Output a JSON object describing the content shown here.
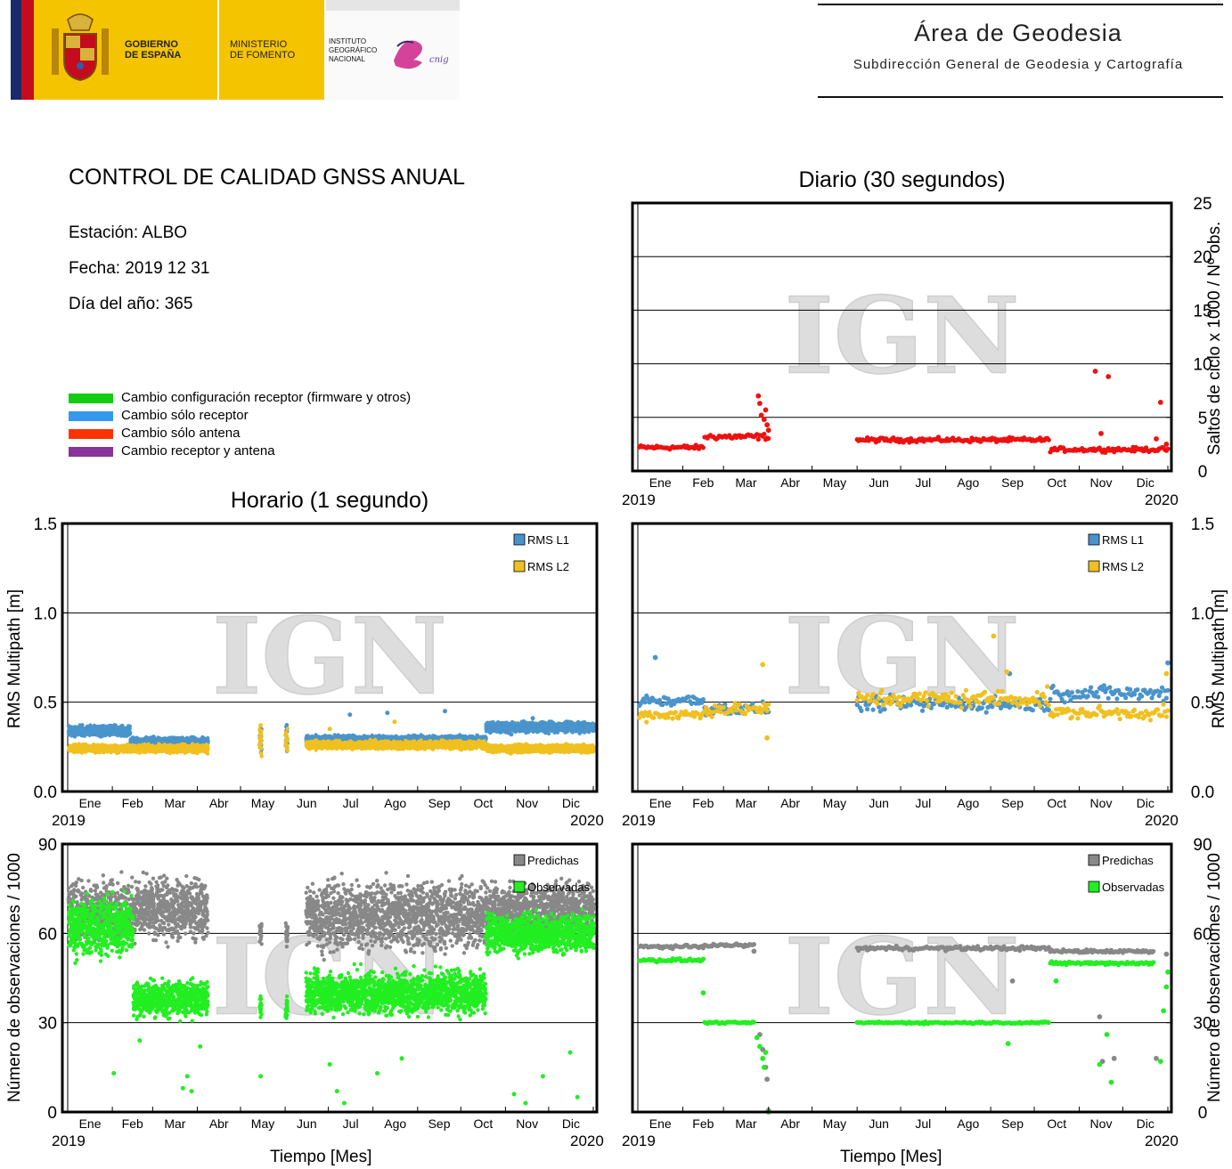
{
  "header": {
    "gobierno": "GOBIERNO\nDE ESPAÑA",
    "ministerio": "MINISTERIO\nDE FOMENTO",
    "instituto": "INSTITUTO\nGEOGRÁFICO\nNACIONAL",
    "cnig": "cnig",
    "area_title": "Área de Geodesia",
    "area_subtitle": "Subdirección General de Geodesia y Cartografía"
  },
  "report": {
    "title": "CONTROL DE CALIDAD GNSS ANUAL",
    "station": "Estación: ALBO",
    "date": "Fecha: 2019 12 31",
    "doy": "Día del año: 365"
  },
  "legend": [
    {
      "label": "Cambio configuración receptor (firmware y otros)",
      "color": "#11cc11"
    },
    {
      "label": "Cambio sólo receptor",
      "color": "#3399ee"
    },
    {
      "label": "Cambio sólo antena",
      "color": "#ff3300"
    },
    {
      "label": "Cambio receptor y antena",
      "color": "#883399"
    }
  ],
  "titles": {
    "daily": "Diario (30 segundos)",
    "hourly": "Horario (1 segundo)",
    "x_axis": "Tiempo [Mes]",
    "y_cycle": "Saltos de ciclo x 1000 / Nº obs.",
    "y_rms": "RMS Multipath [m]",
    "y_obs": "Número de observaciones / 1000"
  },
  "watermark": "IGN",
  "colors": {
    "red": "#ee1111",
    "blue": "#4a94cc",
    "yellow": "#f0c020",
    "gray": "#888888",
    "green": "#22ee22"
  },
  "chart_data": [
    {
      "id": "cycle_slips_daily",
      "type": "scatter",
      "title": "Diario (30 segundos)",
      "ylabel": "Saltos de ciclo x 1000 / Nº obs.",
      "xlabel": "",
      "months": [
        "Ene",
        "Feb",
        "Mar",
        "Abr",
        "May",
        "Jun",
        "Jul",
        "Ago",
        "Sep",
        "Oct",
        "Nov",
        "Dic"
      ],
      "x_start": "2019",
      "x_end": "2020",
      "xlim": [
        0,
        365
      ],
      "ylim": [
        0,
        25
      ],
      "yticks": [
        0,
        5,
        10,
        15,
        20,
        25
      ],
      "series": [
        {
          "color_key": "red",
          "segments": [
            {
              "x0": 1,
              "x1": 45,
              "base": 2.2,
              "spread": 0.3
            },
            {
              "x0": 46,
              "x1": 90,
              "base": 3.2,
              "spread": 0.4
            },
            {
              "x0": 151,
              "x1": 283,
              "base": 2.9,
              "spread": 0.3
            },
            {
              "x0": 284,
              "x1": 365,
              "base": 2.0,
              "spread": 0.3
            }
          ],
          "extra_points": [
            [
              83,
              7.0
            ],
            [
              84,
              6.3
            ],
            [
              85,
              5.2
            ],
            [
              87,
              4.8
            ],
            [
              88,
              5.7
            ],
            [
              89,
              4.3
            ],
            [
              90,
              3.8
            ],
            [
              315,
              9.3
            ],
            [
              324,
              8.8
            ],
            [
              319,
              3.5
            ],
            [
              360,
              6.4
            ],
            [
              364,
              2.5
            ],
            [
              357,
              3.0
            ]
          ]
        }
      ]
    },
    {
      "id": "rms_hourly",
      "type": "scatter",
      "title": "Horario (1 segundo)",
      "ylabel": "RMS Multipath [m]",
      "xlabel": "",
      "months": [
        "Ene",
        "Feb",
        "Mar",
        "Abr",
        "May",
        "Jun",
        "Jul",
        "Ago",
        "Sep",
        "Oct",
        "Nov",
        "Dic"
      ],
      "x_start": "2019",
      "x_end": "2020",
      "xlim": [
        0,
        365
      ],
      "ylim": [
        0,
        1.5
      ],
      "yticks": [
        "0.0",
        "0.5",
        "1.0",
        "1.5"
      ],
      "legend": [
        "RMS L1",
        "RMS L2"
      ],
      "series": [
        {
          "name": "RMS L1",
          "color_key": "blue",
          "segments": [
            {
              "x0": 1,
              "x1": 43,
              "base": 0.34,
              "spread": 0.04
            },
            {
              "x0": 44,
              "x1": 97,
              "base": 0.28,
              "spread": 0.03
            },
            {
              "x0": 166,
              "x1": 290,
              "base": 0.29,
              "spread": 0.03
            },
            {
              "x0": 291,
              "x1": 365,
              "base": 0.36,
              "spread": 0.04
            }
          ],
          "columns": [
            [
              134,
              0.3
            ],
            [
              152,
              0.3
            ]
          ],
          "extra_points": [
            [
              196,
              0.43
            ],
            [
              222,
              0.44
            ],
            [
              262,
              0.45
            ],
            [
              323,
              0.41
            ],
            [
              308,
              0.32
            ]
          ]
        },
        {
          "name": "RMS L2",
          "color_key": "yellow",
          "segments": [
            {
              "x0": 1,
              "x1": 97,
              "base": 0.24,
              "spread": 0.03
            },
            {
              "x0": 166,
              "x1": 290,
              "base": 0.26,
              "spread": 0.03
            },
            {
              "x0": 291,
              "x1": 365,
              "base": 0.24,
              "spread": 0.03
            }
          ],
          "columns": [
            [
              134,
              0.28
            ],
            [
              152,
              0.28
            ]
          ],
          "extra_points": [
            [
              134,
              0.37
            ],
            [
              182,
              0.35
            ],
            [
              227,
              0.39
            ]
          ]
        }
      ]
    },
    {
      "id": "rms_daily",
      "type": "scatter",
      "ylabel": "RMS Multipath [m]",
      "xlabel": "",
      "months": [
        "Ene",
        "Feb",
        "Mar",
        "Abr",
        "May",
        "Jun",
        "Jul",
        "Ago",
        "Sep",
        "Oct",
        "Nov",
        "Dic"
      ],
      "x_start": "2019",
      "x_end": "2020",
      "xlim": [
        0,
        365
      ],
      "ylim": [
        0,
        1.5
      ],
      "yticks": [
        "0.0",
        "0.5",
        "1.0",
        "1.5"
      ],
      "legend": [
        "RMS L1",
        "RMS L2"
      ],
      "series": [
        {
          "name": "RMS L1",
          "color_key": "blue",
          "segments": [
            {
              "x0": 1,
              "x1": 45,
              "base": 0.51,
              "spread": 0.05
            },
            {
              "x0": 46,
              "x1": 90,
              "base": 0.46,
              "spread": 0.05
            },
            {
              "x0": 151,
              "x1": 283,
              "base": 0.49,
              "spread": 0.06
            },
            {
              "x0": 284,
              "x1": 365,
              "base": 0.55,
              "spread": 0.06
            }
          ],
          "extra_points": [
            [
              12,
              0.75
            ],
            [
              256,
              0.66
            ],
            [
              365,
              0.72
            ]
          ]
        },
        {
          "name": "RMS L2",
          "color_key": "yellow",
          "segments": [
            {
              "x0": 1,
              "x1": 45,
              "base": 0.43,
              "spread": 0.05
            },
            {
              "x0": 46,
              "x1": 90,
              "base": 0.46,
              "spread": 0.05
            },
            {
              "x0": 151,
              "x1": 283,
              "base": 0.52,
              "spread": 0.07
            },
            {
              "x0": 284,
              "x1": 365,
              "base": 0.44,
              "spread": 0.05
            }
          ],
          "extra_points": [
            [
              86,
              0.71
            ],
            [
              89,
              0.3
            ],
            [
              245,
              0.87
            ],
            [
              254,
              0.67
            ],
            [
              364,
              0.66
            ]
          ]
        }
      ]
    },
    {
      "id": "obs_hourly",
      "type": "scatter",
      "ylabel": "Número de observaciones / 1000",
      "xlabel": "Tiempo [Mes]",
      "months": [
        "Ene",
        "Feb",
        "Mar",
        "Abr",
        "May",
        "Jun",
        "Jul",
        "Ago",
        "Sep",
        "Oct",
        "Nov",
        "Dic"
      ],
      "x_start": "2019",
      "x_end": "2020",
      "xlim": [
        0,
        365
      ],
      "ylim": [
        0,
        90
      ],
      "yticks": [
        0,
        30,
        60,
        90
      ],
      "legend": [
        "Predichas",
        "Observadas"
      ],
      "series": [
        {
          "name": "Predichas",
          "color_key": "gray",
          "segments": [
            {
              "x0": 1,
              "x1": 97,
              "base": 68,
              "spread": 14
            },
            {
              "x0": 166,
              "x1": 290,
              "base": 66,
              "spread": 16
            },
            {
              "x0": 291,
              "x1": 365,
              "base": 68,
              "spread": 12
            }
          ],
          "columns": [
            [
              134,
              60
            ],
            [
              152,
              60
            ]
          ]
        },
        {
          "name": "Observadas",
          "color_key": "green",
          "segments": [
            {
              "x0": 1,
              "x1": 45,
              "base": 62,
              "spread": 14
            },
            {
              "x0": 46,
              "x1": 97,
              "base": 38,
              "spread": 8
            },
            {
              "x0": 166,
              "x1": 290,
              "base": 40,
              "spread": 10
            },
            {
              "x0": 291,
              "x1": 365,
              "base": 60,
              "spread": 9
            }
          ],
          "columns": [
            [
              134,
              35
            ],
            [
              152,
              35
            ]
          ],
          "extra_points": [
            [
              32,
              13
            ],
            [
              50,
              24
            ],
            [
              80,
              8
            ],
            [
              83,
              12
            ],
            [
              86,
              7
            ],
            [
              92,
              22
            ],
            [
              134,
              12
            ],
            [
              182,
              16
            ],
            [
              187,
              7
            ],
            [
              192,
              3
            ],
            [
              215,
              13
            ],
            [
              232,
              18
            ],
            [
              310,
              6
            ],
            [
              318,
              3
            ],
            [
              330,
              12
            ],
            [
              349,
              20
            ],
            [
              354,
              5
            ]
          ]
        }
      ]
    },
    {
      "id": "obs_daily",
      "type": "scatter",
      "ylabel": "Número de observaciones / 1000",
      "xlabel": "Tiempo [Mes]",
      "months": [
        "Ene",
        "Feb",
        "Mar",
        "Abr",
        "May",
        "Jun",
        "Jul",
        "Ago",
        "Sep",
        "Oct",
        "Nov",
        "Dic"
      ],
      "x_start": "2019",
      "x_end": "2020",
      "xlim": [
        0,
        365
      ],
      "ylim": [
        0,
        90
      ],
      "yticks": [
        0,
        30,
        60,
        90
      ],
      "legend": [
        "Predichas",
        "Observadas"
      ],
      "series": [
        {
          "name": "Predichas",
          "color_key": "gray",
          "segments": [
            {
              "x0": 1,
              "x1": 45,
              "base": 55.5,
              "spread": 0.7
            },
            {
              "x0": 46,
              "x1": 80,
              "base": 56,
              "spread": 0.7
            },
            {
              "x0": 151,
              "x1": 283,
              "base": 55,
              "spread": 1.0
            },
            {
              "x0": 284,
              "x1": 355,
              "base": 54,
              "spread": 0.8
            }
          ],
          "extra_points": [
            [
              80,
              54
            ],
            [
              84,
              26
            ],
            [
              86,
              21
            ],
            [
              88,
              15
            ],
            [
              89,
              11
            ],
            [
              90,
              0.5
            ],
            [
              258,
              44
            ],
            [
              318,
              32
            ],
            [
              320,
              17
            ],
            [
              328,
              18
            ],
            [
              357,
              18
            ],
            [
              364,
              53
            ]
          ]
        },
        {
          "name": "Observadas",
          "color_key": "green",
          "segments": [
            {
              "x0": 1,
              "x1": 45,
              "base": 51,
              "spread": 0.8
            },
            {
              "x0": 46,
              "x1": 80,
              "base": 30,
              "spread": 0.4
            },
            {
              "x0": 151,
              "x1": 283,
              "base": 30,
              "spread": 0.5
            },
            {
              "x0": 284,
              "x1": 355,
              "base": 50,
              "spread": 0.8
            }
          ],
          "extra_points": [
            [
              45,
              40
            ],
            [
              82,
              25
            ],
            [
              84,
              22
            ],
            [
              86,
              18
            ],
            [
              87,
              15
            ],
            [
              88,
              20
            ],
            [
              90,
              0
            ],
            [
              255,
              23
            ],
            [
              288,
              44
            ],
            [
              318,
              16
            ],
            [
              323,
              26
            ],
            [
              326,
              10
            ],
            [
              360,
              17
            ],
            [
              362,
              34
            ],
            [
              364,
              42
            ],
            [
              365,
              47
            ]
          ]
        }
      ]
    }
  ]
}
